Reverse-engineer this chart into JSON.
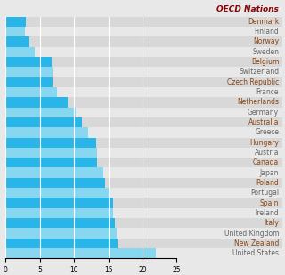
{
  "countries": [
    "Denmark",
    "Finland",
    "Norway",
    "Sweden",
    "Belgium",
    "Switzerland",
    "Czech Republic",
    "France",
    "Netherlands",
    "Germany",
    "Australia",
    "Greece",
    "Hungary",
    "Austria",
    "Canada",
    "Japan",
    "Poland",
    "Portugal",
    "Spain",
    "Ireland",
    "Italy",
    "United Kingdom",
    "New Zealand",
    "United States"
  ],
  "values": [
    3.0,
    2.8,
    3.4,
    4.2,
    6.7,
    6.8,
    6.8,
    7.5,
    9.0,
    10.2,
    11.1,
    12.0,
    13.2,
    13.3,
    13.3,
    14.3,
    14.5,
    15.3,
    15.7,
    15.7,
    16.0,
    16.2,
    16.3,
    21.9
  ],
  "bar_color_dark": "#29b5e8",
  "bar_color_light": "#87d7f0",
  "bg_color_dark": "#d8d8d8",
  "bg_color_light": "#e8e8e8",
  "title": "OECD Nations",
  "title_color": "#8B0000",
  "label_color_dark": "#8B4513",
  "label_color_light": "#666666",
  "xlim": [
    0,
    25
  ],
  "xticks": [
    0,
    5,
    10,
    15,
    20,
    25
  ],
  "title_fontsize": 6.5,
  "label_fontsize": 5.5
}
